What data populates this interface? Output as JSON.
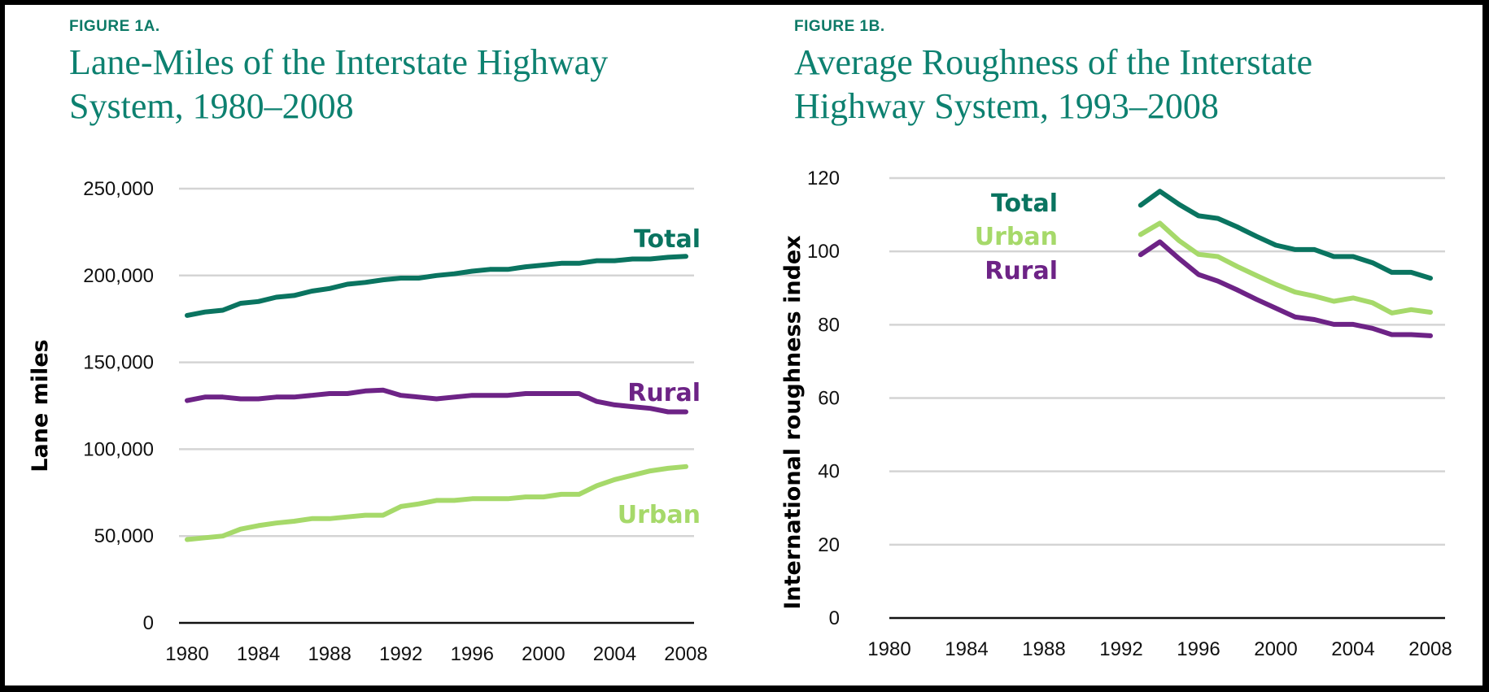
{
  "figures": [
    {
      "label": "FIGURE 1A.",
      "title_line1": "Lane-Miles of the Interstate Highway",
      "title_line2": "System, 1980–2008"
    },
    {
      "label": "FIGURE 1B.",
      "title_line1": "Average Roughness of the Interstate",
      "title_line2": "Highway System, 1993–2008"
    }
  ],
  "colors": {
    "title": "#0d8170",
    "total": "#0a7460",
    "urban": "#a6d96a",
    "rural": "#6d2386",
    "grid": "#d4d4d4"
  },
  "chart_data": [
    {
      "type": "line",
      "title": "Lane-Miles of the Interstate Highway System, 1980–2008",
      "xlabel": "",
      "ylabel": "Lane miles",
      "xlim": [
        1980,
        2008
      ],
      "ylim": [
        0,
        250000
      ],
      "x_ticks": [
        1980,
        1984,
        1988,
        1992,
        1996,
        2000,
        2004,
        2008
      ],
      "y_ticks": [
        0,
        50000,
        100000,
        150000,
        200000,
        250000
      ],
      "y_tick_labels": [
        "0",
        "50,000",
        "100,000",
        "150,000",
        "200,000",
        "250,000"
      ],
      "grid": true,
      "legend": "inline-right",
      "x": [
        1980,
        1981,
        1982,
        1983,
        1984,
        1985,
        1986,
        1987,
        1988,
        1989,
        1990,
        1991,
        1992,
        1993,
        1994,
        1995,
        1996,
        1997,
        1998,
        1999,
        2000,
        2001,
        2002,
        2003,
        2004,
        2005,
        2006,
        2007,
        2008
      ],
      "series": [
        {
          "name": "Total",
          "color_key": "total",
          "values": [
            177000,
            179000,
            180000,
            184000,
            185000,
            187500,
            188500,
            191000,
            192500,
            195000,
            196000,
            197500,
            198500,
            198500,
            200000,
            201000,
            202500,
            203500,
            203500,
            205000,
            206000,
            207000,
            207000,
            208500,
            208500,
            209500,
            209500,
            210500,
            211000
          ]
        },
        {
          "name": "Rural",
          "color_key": "rural",
          "values": [
            128000,
            130000,
            130000,
            129000,
            129000,
            130000,
            130000,
            131000,
            132000,
            132000,
            133500,
            134000,
            131000,
            130000,
            129000,
            130000,
            131000,
            131000,
            131000,
            132000,
            132000,
            132000,
            132000,
            127500,
            125500,
            124500,
            123500,
            121500,
            121500
          ]
        },
        {
          "name": "Urban",
          "color_key": "urban",
          "values": [
            48000,
            49000,
            50000,
            54000,
            56000,
            57500,
            58500,
            60000,
            60000,
            61000,
            62000,
            62000,
            67000,
            68500,
            70500,
            70500,
            71500,
            71500,
            71500,
            72500,
            72500,
            74000,
            74000,
            79000,
            82500,
            85000,
            87500,
            89000,
            90000
          ]
        }
      ]
    },
    {
      "type": "line",
      "title": "Average Roughness of the Interstate Highway System, 1993–2008",
      "xlabel": "",
      "ylabel": "International roughness index",
      "xlim": [
        1980,
        2008
      ],
      "ylim": [
        0,
        120
      ],
      "x_ticks": [
        1980,
        1984,
        1988,
        1992,
        1996,
        2000,
        2004,
        2008
      ],
      "y_ticks": [
        0,
        20,
        40,
        60,
        80,
        100,
        120
      ],
      "y_tick_labels": [
        "0",
        "20",
        "40",
        "60",
        "80",
        "100",
        "120"
      ],
      "grid": true,
      "legend": "inline-left",
      "x": [
        1993,
        1994,
        1995,
        1996,
        1997,
        1998,
        1999,
        2000,
        2001,
        2002,
        2003,
        2004,
        2005,
        2006,
        2007,
        2008
      ],
      "series": [
        {
          "name": "Total",
          "color_key": "total",
          "values": [
            112.6,
            116.4,
            112.8,
            109.7,
            109.0,
            106.7,
            104.1,
            101.7,
            100.5,
            100.5,
            98.6,
            98.6,
            96.9,
            94.3,
            94.3,
            92.7
          ]
        },
        {
          "name": "Urban",
          "color_key": "urban",
          "values": [
            104.6,
            107.7,
            102.9,
            99.2,
            98.6,
            95.9,
            93.4,
            91.0,
            88.9,
            87.8,
            86.4,
            87.3,
            86.0,
            83.2,
            84.1,
            83.4
          ]
        },
        {
          "name": "Rural",
          "color_key": "rural",
          "values": [
            99.1,
            102.6,
            98.0,
            93.7,
            91.9,
            89.5,
            86.9,
            84.5,
            82.1,
            81.4,
            80.1,
            80.1,
            79.0,
            77.3,
            77.3,
            77.0
          ]
        }
      ]
    }
  ]
}
